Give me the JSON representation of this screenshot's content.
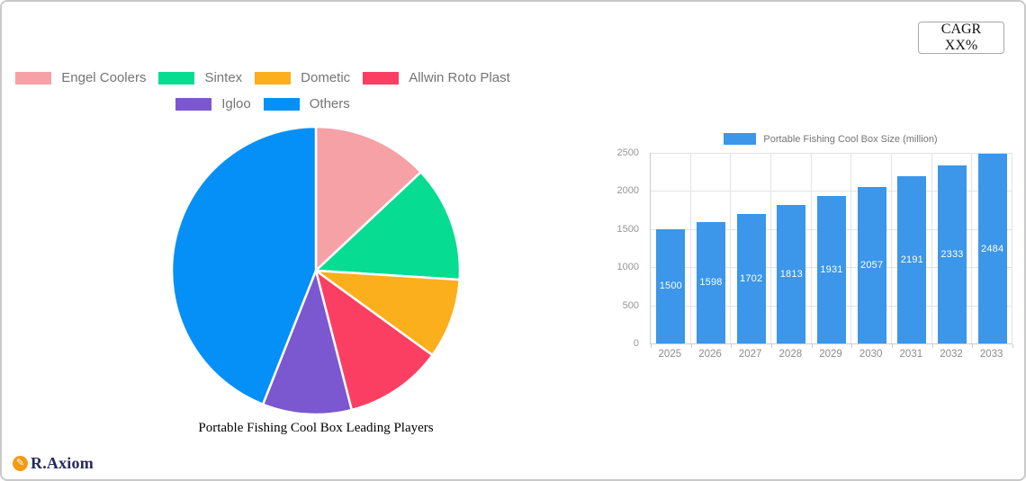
{
  "window": {
    "background": "#ffffff",
    "border_color": "#c9c9c9"
  },
  "cagr_button": {
    "label": "CAGR XX%"
  },
  "branding": {
    "name": "R.Axiom",
    "icon": "pencil-icon",
    "icon_color": "#f49a15",
    "text_color": "#252a5d"
  },
  "palette": {
    "grid": "#e3e3e3",
    "axis": "#cccccc",
    "legend_text": "#757575",
    "tick_text": "#969696"
  },
  "chart_data": [
    {
      "type": "pie",
      "title": "Portable Fishing Cool Box Leading Players",
      "labels": [
        "Engel Coolers",
        "Sintex",
        "Dometic",
        "Allwin Roto Plast",
        "Igloo",
        "Others"
      ],
      "values": [
        13,
        13,
        9,
        11,
        10,
        44
      ],
      "unit": "percent-share",
      "colors": [
        "#f5a1a6",
        "#06dc92",
        "#fbaf1c",
        "#fb3f62",
        "#7b57d0",
        "#0590f7"
      ],
      "start_angle": "top",
      "direction": "clockwise",
      "legend_position": "top",
      "legend_rows": [
        [
          "Engel Coolers",
          "Sintex",
          "Dometic",
          "Allwin Roto Plast"
        ],
        [
          "Igloo",
          "Others"
        ]
      ]
    },
    {
      "type": "bar",
      "legend": "Portable Fishing Cool Box Size (million)",
      "categories": [
        "2025",
        "2026",
        "2027",
        "2028",
        "2029",
        "2030",
        "2031",
        "2032",
        "2033"
      ],
      "values": [
        1500,
        1598,
        1702,
        1813,
        1931,
        2057,
        2191,
        2333,
        2484
      ],
      "bar_color": "#3c96e9",
      "value_label_color": "#ffffff",
      "ylim": [
        0,
        2500
      ],
      "yticks": [
        0,
        500,
        1000,
        1500,
        2000,
        2500
      ],
      "grid": true,
      "legend_position": "top"
    }
  ]
}
